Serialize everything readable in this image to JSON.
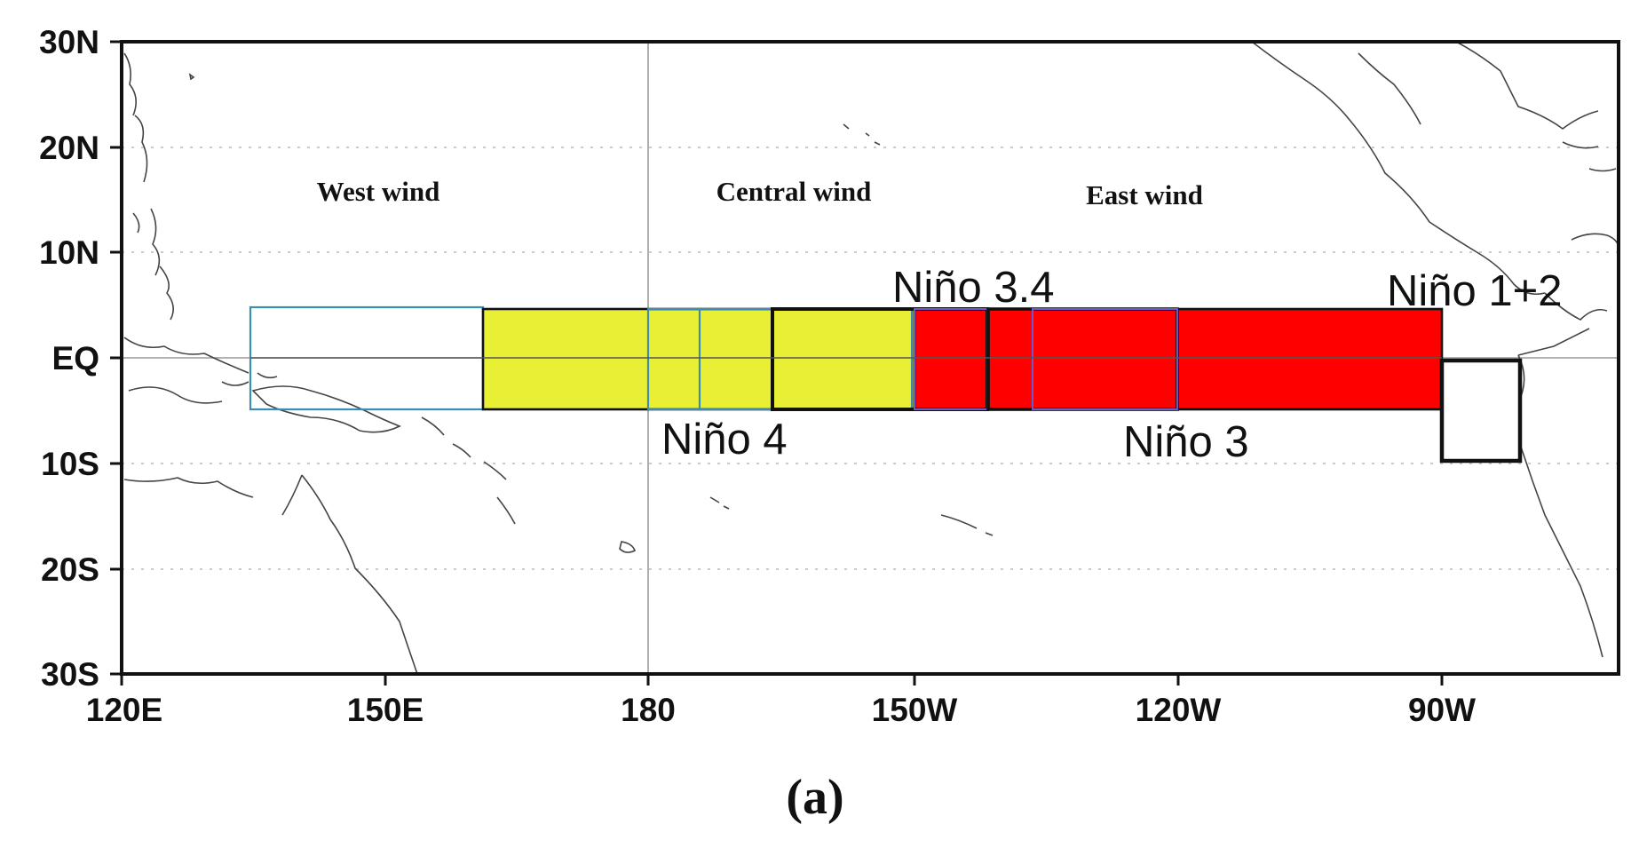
{
  "figure": {
    "panel_label": "(a)"
  },
  "axes": {
    "y_ticks": [
      "30N",
      "20N",
      "10N",
      "EQ",
      "10S",
      "20S",
      "30S"
    ],
    "x_ticks": [
      "120E",
      "150E",
      "180",
      "150W",
      "120W",
      "90W"
    ]
  },
  "wind_labels": {
    "west": "West wind",
    "central": "Central wind",
    "east": "East wind"
  },
  "regions": {
    "nino34": "Niño 3.4",
    "nino12": "Niño 1+2",
    "nino4": "Niño 4",
    "nino3": "Niño 3"
  },
  "colors": {
    "west_box_outline": "#3a8fb0",
    "central_fill": "#e9ef35",
    "east_fill": "#ff0000",
    "frame": "#111111"
  }
}
